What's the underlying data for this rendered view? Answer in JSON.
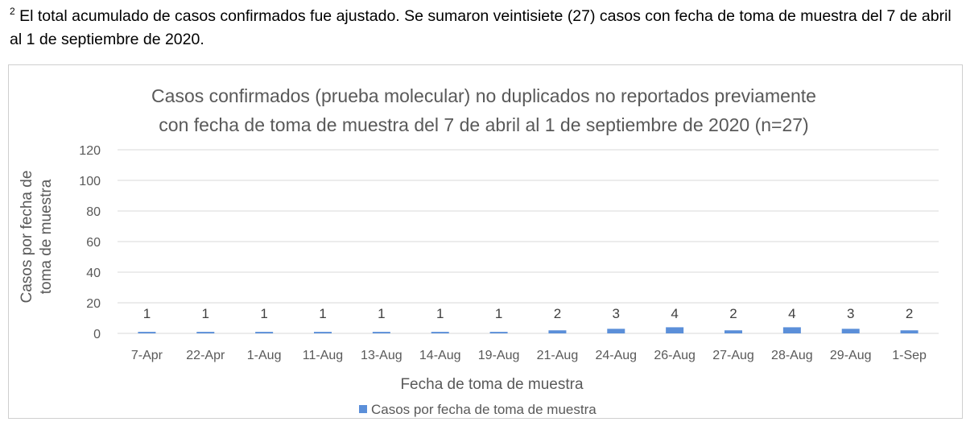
{
  "footnote": {
    "marker": "2",
    "text": " El total acumulado de casos confirmados fue ajustado. Se sumaron veintisiete (27) casos con fecha de toma de muestra del 7 de abril al 1 de septiembre de 2020."
  },
  "chart_data": {
    "type": "bar",
    "title_lines": [
      "Casos confirmados (prueba molecular) no duplicados no reportados previamente",
      "con fecha de toma de muestra del 7 de abril al 1 de septiembre de 2020 (n=27)"
    ],
    "categories": [
      "7-Apr",
      "22-Apr",
      "1-Aug",
      "11-Aug",
      "13-Aug",
      "14-Aug",
      "19-Aug",
      "21-Aug",
      "24-Aug",
      "26-Aug",
      "27-Aug",
      "28-Aug",
      "29-Aug",
      "1-Sep"
    ],
    "series": [
      {
        "name": "Casos por fecha de toma de muestra",
        "values": [
          1,
          1,
          1,
          1,
          1,
          1,
          1,
          2,
          3,
          4,
          2,
          4,
          3,
          2
        ],
        "color": "#5b8fd9"
      }
    ],
    "data_labels": [
      "1",
      "1",
      "1",
      "1",
      "1",
      "1",
      "1",
      "2",
      "3",
      "4",
      "2",
      "4",
      "3",
      "2"
    ],
    "xlabel": "Fecha de toma de muestra",
    "ylabel_lines": [
      "Casos por fecha de",
      "toma de muestra"
    ],
    "ylim": [
      0,
      120
    ],
    "yticks": [
      "0",
      "20",
      "40",
      "60",
      "80",
      "100",
      "120"
    ],
    "grid": true,
    "legend_position": "bottom",
    "colors": {
      "bar": "#5b8fd9",
      "grid": "#d9d9d9",
      "text": "#595959"
    }
  }
}
